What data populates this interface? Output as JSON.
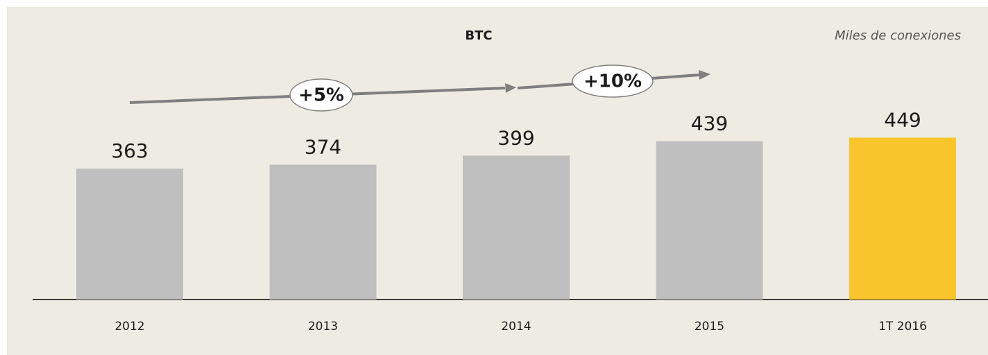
{
  "chart_data": {
    "type": "bar",
    "title": "BTC",
    "subtitle": "Miles de conexiones",
    "categories": [
      "2012",
      "2013",
      "2014",
      "2015",
      "1T 2016"
    ],
    "values": [
      363,
      374,
      399,
      439,
      449
    ],
    "colors": [
      "#bfbfbf",
      "#bfbfbf",
      "#bfbfbf",
      "#bfbfbf",
      "#f9c52c"
    ],
    "annotations": [
      "+5%",
      "+10%"
    ]
  }
}
